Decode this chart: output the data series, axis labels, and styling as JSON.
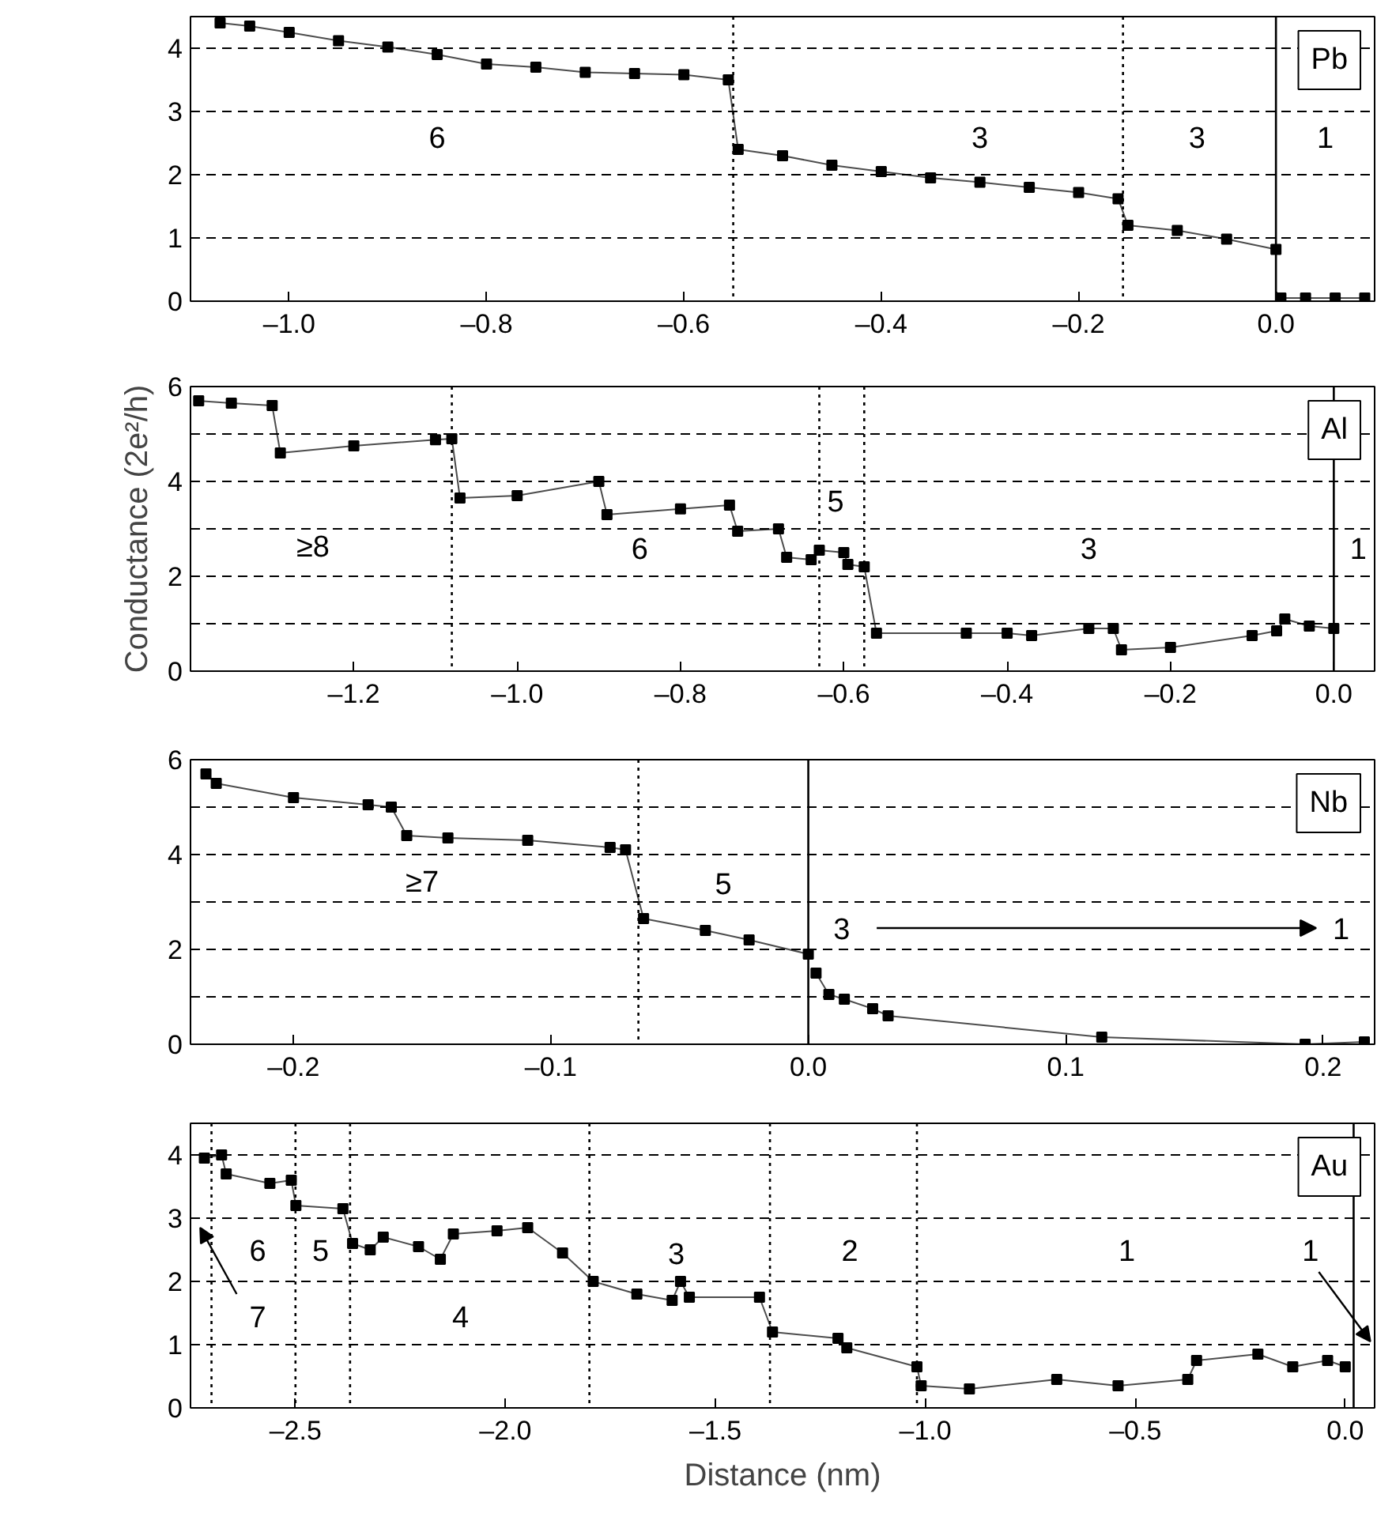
{
  "chart_data": [
    {
      "type": "line",
      "title": "Pb",
      "marker": "square",
      "grid": "y",
      "xlim": [
        -1.1,
        0.1
      ],
      "ylim": [
        0,
        4.5
      ],
      "xticks": [
        {
          "value": -1.0,
          "label": "–1.0"
        },
        {
          "value": -0.8,
          "label": "–0.8"
        },
        {
          "value": -0.6,
          "label": "–0.6"
        },
        {
          "value": -0.4,
          "label": "–0.4"
        },
        {
          "value": -0.2,
          "label": "–0.2"
        },
        {
          "value": 0.0,
          "label": "0.0"
        }
      ],
      "yticks": [
        0,
        1,
        2,
        3,
        4
      ],
      "series": [
        {
          "color": "#000000",
          "x": [
            -1.07,
            -1.04,
            -1.0,
            -0.95,
            -0.9,
            -0.85,
            -0.8,
            -0.75,
            -0.7,
            -0.65,
            -0.6,
            -0.555,
            -0.545,
            -0.5,
            -0.45,
            -0.4,
            -0.35,
            -0.3,
            -0.25,
            -0.2,
            -0.16,
            -0.15,
            -0.1,
            -0.05,
            0.0
          ],
          "values": [
            4.4,
            4.35,
            4.25,
            4.12,
            4.02,
            3.9,
            3.75,
            3.7,
            3.62,
            3.6,
            3.58,
            3.5,
            2.4,
            2.3,
            2.15,
            2.05,
            1.95,
            1.88,
            1.8,
            1.72,
            1.62,
            1.2,
            1.12,
            0.98,
            0.82
          ]
        },
        {
          "color": "#000000",
          "x": [
            0.005,
            0.03,
            0.06,
            0.09
          ],
          "values": [
            0.05,
            0.05,
            0.05,
            0.05
          ]
        }
      ],
      "ref_lines": [
        {
          "axis": "x",
          "value": -0.55,
          "line_style": "dotted"
        },
        {
          "axis": "x",
          "value": -0.155,
          "line_style": "dotted"
        },
        {
          "axis": "x",
          "value": 0.0,
          "line_style": "solid"
        }
      ],
      "annotations": [
        "6",
        "3",
        "3",
        "1"
      ]
    },
    {
      "type": "line",
      "title": "Al",
      "marker": "square",
      "grid": "y",
      "ylabel": "Conductance (2e²/h)",
      "xlim": [
        -1.4,
        0.05
      ],
      "ylim": [
        0,
        6
      ],
      "xticks": [
        {
          "value": -1.2,
          "label": "–1.2"
        },
        {
          "value": -1.0,
          "label": "–1.0"
        },
        {
          "value": -0.8,
          "label": "–0.8"
        },
        {
          "value": -0.6,
          "label": "–0.6"
        },
        {
          "value": -0.4,
          "label": "–0.4"
        },
        {
          "value": -0.2,
          "label": "–0.2"
        },
        {
          "value": 0.0,
          "label": "0.0"
        }
      ],
      "yticks": [
        0,
        {
          "value": 1,
          "label": null
        },
        2,
        {
          "value": 3,
          "label": null
        },
        4,
        {
          "value": 5,
          "label": null
        },
        6
      ],
      "series": [
        {
          "color": "#000000",
          "x": [
            -1.39,
            -1.35,
            -1.3,
            -1.29,
            -1.2,
            -1.1,
            -1.08,
            -1.07,
            -1.0,
            -0.9,
            -0.89,
            -0.8,
            -0.74,
            -0.73,
            -0.68,
            -0.67,
            -0.64,
            -0.63,
            -0.6,
            -0.595,
            -0.575,
            -0.56,
            -0.45,
            -0.4,
            -0.37,
            -0.3,
            -0.27,
            -0.26,
            -0.2,
            -0.1,
            -0.07,
            -0.06,
            -0.03,
            0.0
          ],
          "values": [
            5.7,
            5.65,
            5.6,
            4.6,
            4.75,
            4.88,
            4.9,
            3.65,
            3.7,
            4.0,
            3.3,
            3.42,
            3.5,
            2.95,
            3.0,
            2.4,
            2.35,
            2.55,
            2.5,
            2.25,
            2.2,
            0.8,
            0.8,
            0.8,
            0.75,
            0.9,
            0.9,
            0.45,
            0.5,
            0.75,
            0.85,
            1.1,
            0.95,
            0.9
          ]
        }
      ],
      "ref_lines": [
        {
          "axis": "x",
          "value": -1.08,
          "line_style": "dotted"
        },
        {
          "axis": "x",
          "value": -0.63,
          "line_style": "dotted"
        },
        {
          "axis": "x",
          "value": -0.575,
          "line_style": "dotted"
        },
        {
          "axis": "x",
          "value": 0.0,
          "line_style": "solid"
        }
      ],
      "annotations": [
        "≥8",
        "6",
        "5",
        "3",
        "1"
      ]
    },
    {
      "type": "line",
      "title": "Nb",
      "marker": "square",
      "grid": "y",
      "xlim": [
        -0.24,
        0.22
      ],
      "ylim": [
        0,
        6
      ],
      "xticks": [
        {
          "value": -0.2,
          "label": "–0.2"
        },
        {
          "value": -0.1,
          "label": "–0.1"
        },
        {
          "value": 0.0,
          "label": "0.0"
        },
        {
          "value": 0.1,
          "label": "0.1"
        },
        {
          "value": 0.2,
          "label": "0.2"
        }
      ],
      "yticks": [
        0,
        {
          "value": 1,
          "label": null
        },
        2,
        {
          "value": 3,
          "label": null
        },
        4,
        {
          "value": 5,
          "label": null
        },
        6
      ],
      "series": [
        {
          "color": "#000000",
          "x": [
            -0.234,
            -0.23,
            -0.2,
            -0.171,
            -0.162,
            -0.156,
            -0.14,
            -0.109,
            -0.077,
            -0.071,
            -0.064,
            -0.04,
            -0.023,
            0.0
          ],
          "values": [
            5.7,
            5.5,
            5.2,
            5.05,
            5.0,
            4.4,
            4.35,
            4.3,
            4.15,
            4.1,
            2.65,
            2.4,
            2.2,
            1.9
          ]
        },
        {
          "color": "#000000",
          "x": [
            0.003,
            0.008,
            0.014,
            0.025,
            0.031,
            0.114,
            0.193,
            0.216
          ],
          "values": [
            1.5,
            1.05,
            0.95,
            0.75,
            0.6,
            0.15,
            0.0,
            0.05
          ]
        }
      ],
      "ref_lines": [
        {
          "axis": "x",
          "value": -0.066,
          "line_style": "dotted"
        },
        {
          "axis": "x",
          "value": 0.0,
          "line_style": "solid"
        }
      ],
      "annotations": [
        "≥7",
        "5",
        "3",
        "1"
      ]
    },
    {
      "type": "line",
      "title": "Au",
      "marker": "square",
      "grid": "y",
      "xlabel": "Distance (nm)",
      "xlim": [
        -2.75,
        0.07
      ],
      "ylim": [
        0,
        4.5
      ],
      "xticks": [
        {
          "value": -2.5,
          "label": "–2.5"
        },
        {
          "value": -2.0,
          "label": "–2.0"
        },
        {
          "value": -1.5,
          "label": "–1.5"
        },
        {
          "value": -1.0,
          "label": "–1.0"
        },
        {
          "value": -0.5,
          "label": "–0.5"
        },
        {
          "value": 0.0,
          "label": "0.0"
        }
      ],
      "yticks": [
        0,
        1,
        2,
        3,
        4
      ],
      "series": [
        {
          "color": "#000000",
          "x": [
            -2.717,
            -2.676,
            -2.665,
            -2.561,
            -2.51,
            -2.499,
            -2.387,
            -2.364,
            -2.322,
            -2.291,
            -2.207,
            -2.155,
            -2.124,
            -2.02,
            -1.947,
            -1.864,
            -1.791,
            -1.687,
            -1.603,
            -1.583,
            -1.562,
            -1.395,
            -1.364,
            -1.208,
            -1.187,
            -1.02,
            -1.01,
            -0.895,
            -0.687,
            -0.541,
            -0.375,
            -0.354,
            -0.208,
            -0.125,
            -0.042,
            0.0
          ],
          "values": [
            3.95,
            4.0,
            3.7,
            3.55,
            3.6,
            3.2,
            3.15,
            2.6,
            2.5,
            2.7,
            2.55,
            2.35,
            2.75,
            2.8,
            2.85,
            2.45,
            2.0,
            1.8,
            1.7,
            2.0,
            1.75,
            1.75,
            1.2,
            1.1,
            0.95,
            0.65,
            0.35,
            0.3,
            0.45,
            0.35,
            0.45,
            0.75,
            0.85,
            0.65,
            0.75,
            0.65
          ]
        }
      ],
      "ref_lines": [
        {
          "axis": "x",
          "value": -2.7,
          "line_style": "dotted"
        },
        {
          "axis": "x",
          "value": -2.5,
          "line_style": "dotted"
        },
        {
          "axis": "x",
          "value": -2.37,
          "line_style": "dotted"
        },
        {
          "axis": "x",
          "value": -1.8,
          "line_style": "dotted"
        },
        {
          "axis": "x",
          "value": -1.37,
          "line_style": "dotted"
        },
        {
          "axis": "x",
          "value": -1.02,
          "line_style": "dotted"
        },
        {
          "axis": "x",
          "value": 0.02,
          "line_style": "solid"
        }
      ],
      "annotations": [
        "6",
        "5",
        "7",
        "4",
        "3",
        "2",
        "1",
        "1"
      ]
    }
  ]
}
